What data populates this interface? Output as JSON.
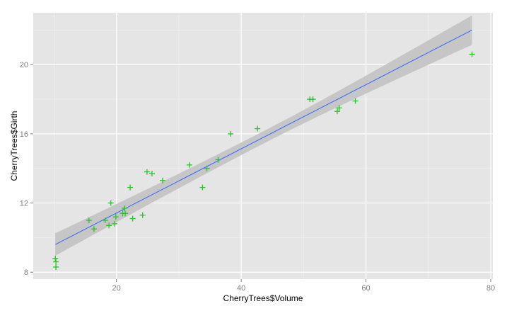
{
  "chart_data": {
    "type": "scatter",
    "xlabel": "CherryTrees$Volume",
    "ylabel": "CherryTrees$Girth",
    "xlim": [
      6.66,
      80.34
    ],
    "ylim": [
      7.6,
      23.0
    ],
    "x_ticks": [
      20,
      40,
      60,
      80
    ],
    "y_ticks": [
      8,
      12,
      16,
      20
    ],
    "x_tick_labels": [
      "20",
      "40",
      "60",
      "80"
    ],
    "y_tick_labels": [
      "8",
      "12",
      "16",
      "20"
    ],
    "grid": true,
    "legend": "none",
    "colors": {
      "panel": "#e5e5e5",
      "grid_major": "#ffffff",
      "grid_minor": "#f2f2f2",
      "points": "#27c427",
      "fit_line": "#3366ff",
      "confidence_band": "#c6c6c6"
    },
    "series": [
      {
        "type": "points",
        "marker": "plus",
        "x": [
          10.3,
          10.3,
          10.2,
          16.4,
          18.8,
          19.7,
          15.6,
          18.2,
          22.6,
          19.9,
          24.2,
          21.0,
          21.4,
          21.3,
          19.1,
          22.2,
          33.8,
          27.4,
          25.7,
          24.9,
          34.5,
          31.7,
          36.3,
          38.3,
          42.6,
          55.4,
          55.7,
          58.3,
          51.5,
          51.0,
          77.0
        ],
        "y": [
          8.3,
          8.6,
          8.8,
          10.5,
          10.7,
          10.8,
          11.0,
          11.0,
          11.1,
          11.2,
          11.3,
          11.4,
          11.4,
          11.7,
          12.0,
          12.9,
          12.9,
          13.3,
          13.7,
          13.8,
          14.0,
          14.2,
          14.5,
          16.0,
          16.3,
          17.3,
          17.5,
          17.9,
          18.0,
          18.0,
          20.6
        ]
      },
      {
        "type": "linear-fit",
        "x": [
          10.2,
          77.0
        ],
        "y": [
          9.6,
          22.0
        ],
        "band_lower": [
          8.95,
          21.15
        ],
        "band_upper": [
          10.25,
          22.85
        ]
      }
    ]
  }
}
